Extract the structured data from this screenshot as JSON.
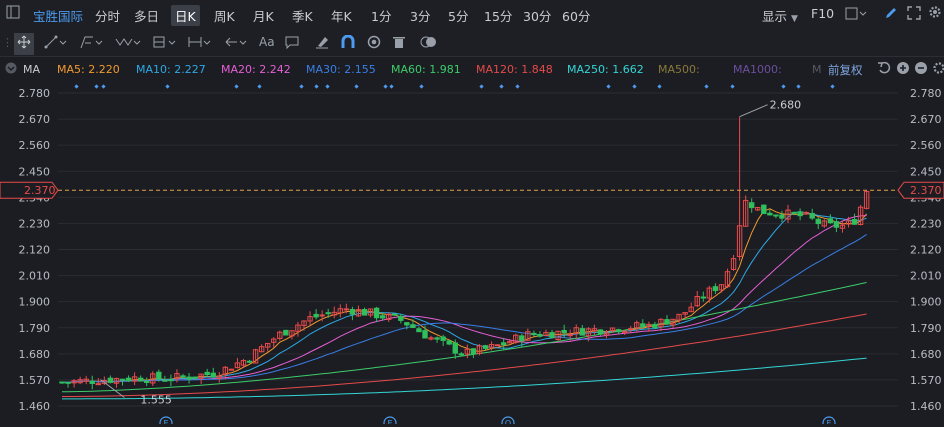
{
  "topbar": {
    "stock_name": "宝胜国际",
    "periods": [
      "分时",
      "多日",
      "日K",
      "周K",
      "月K",
      "季K",
      "年K",
      "1分",
      "3分",
      "5分",
      "15分",
      "30分",
      "60分"
    ],
    "active_period": "日K",
    "display_label": "显示",
    "f10_label": "F10"
  },
  "toolbar": {
    "text_tool_label": "Aa"
  },
  "ma_bar": {
    "label": "MA",
    "items": [
      {
        "text": "MA5: 2.220",
        "color": "#f29a2e"
      },
      {
        "text": "MA10: 2.227",
        "color": "#2ea8e6"
      },
      {
        "text": "MA20: 2.242",
        "color": "#e65fd6"
      },
      {
        "text": "MA30: 2.155",
        "color": "#3a7ee6"
      },
      {
        "text": "MA60: 1.981",
        "color": "#3dcc6a"
      },
      {
        "text": "MA120: 1.848",
        "color": "#e64a4a"
      },
      {
        "text": "MA250: 1.662",
        "color": "#33d6d6"
      },
      {
        "text": "MA500:",
        "color": "#8a7a3a"
      },
      {
        "text": "MA1000:",
        "color": "#6e4ea0"
      },
      {
        "text": "M",
        "color": "#555a62"
      }
    ],
    "adjust_label": "前复权"
  },
  "chart": {
    "current_price": "2.370",
    "high_label": "2.680",
    "low_label": "1.555",
    "y_ticks": [
      "2.780",
      "2.670",
      "2.560",
      "2.450",
      "2.340",
      "2.230",
      "2.120",
      "2.010",
      "1.900",
      "1.790",
      "1.680",
      "1.570",
      "1.460"
    ],
    "event_markers": [
      "E",
      "E",
      "Q",
      "E"
    ],
    "colors": {
      "up": "#e84a4a",
      "down": "#2fbf5c",
      "bg": "#1b1d22",
      "grid": "#2a2d33"
    }
  }
}
